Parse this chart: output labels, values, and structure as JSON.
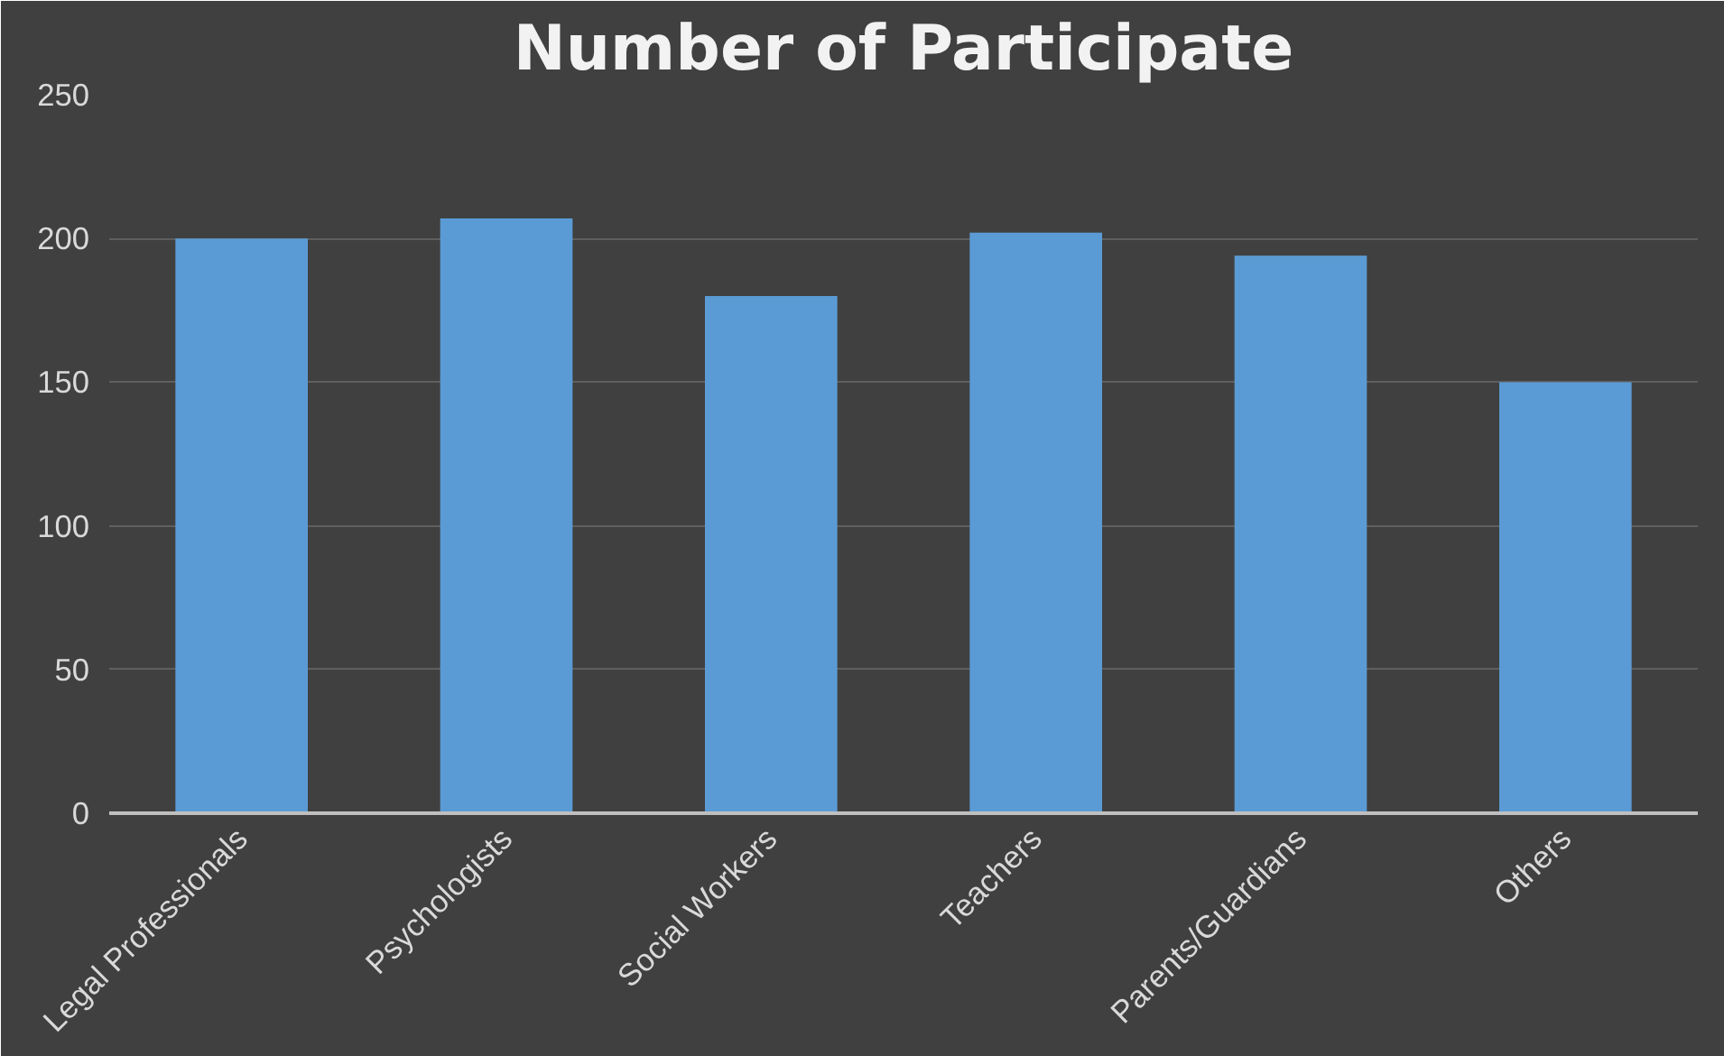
{
  "chart_data": {
    "type": "bar",
    "title": "Number of Participate",
    "categories": [
      "Legal Professionals",
      "Psychologists",
      "Social Workers",
      "Teachers",
      "Parents/Guardians",
      "Others"
    ],
    "values": [
      200,
      207,
      180,
      202,
      194,
      150
    ],
    "color": "#5b9bd5",
    "ylim": [
      0,
      250
    ],
    "yticks": [
      0,
      50,
      100,
      150,
      200,
      250
    ],
    "grid": "y"
  }
}
